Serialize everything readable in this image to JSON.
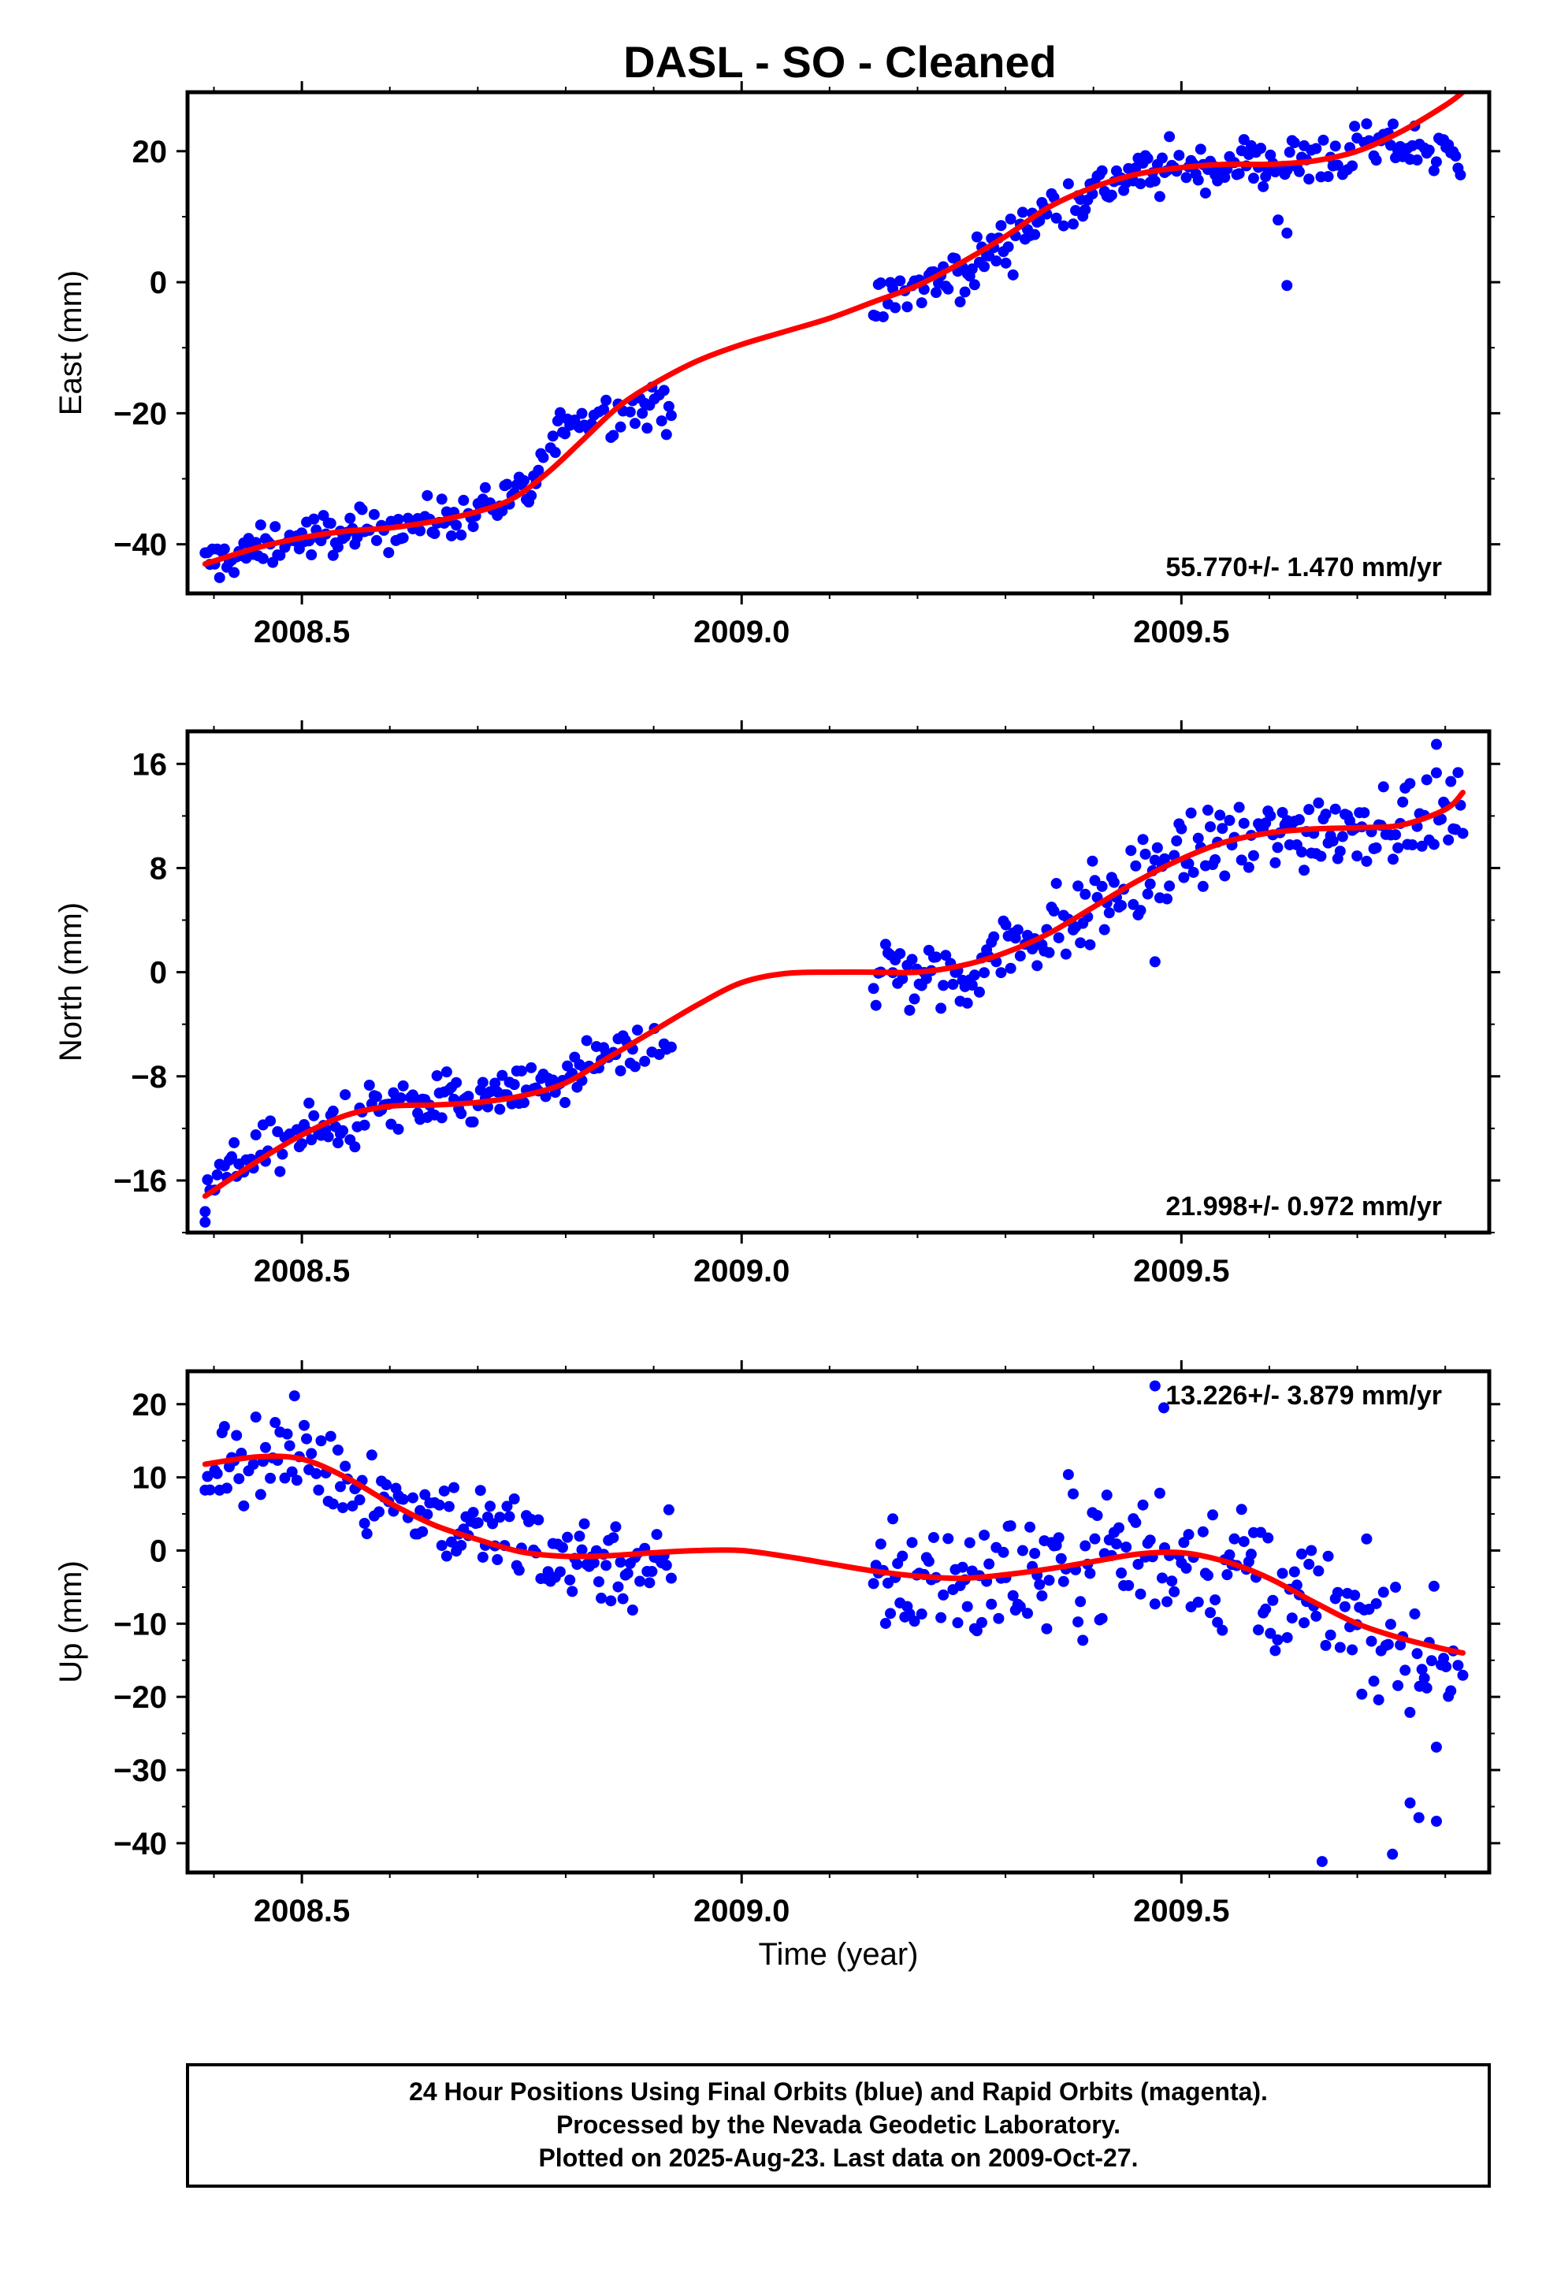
{
  "title": "DASL  - SO - Cleaned",
  "footer_lines": [
    "24 Hour Positions Using Final Orbits (blue) and Rapid Orbits (magenta).",
    "Processed by the Nevada Geodetic Laboratory.",
    "Plotted on 2025-Aug-23. Last data on 2009-Oct-27."
  ],
  "colors": {
    "points": "#0000ff",
    "fit": "#ff0000",
    "frame": "#000000"
  },
  "chart_data": [
    {
      "type": "scatter",
      "ylabel": "East (mm)",
      "xlabel": "",
      "rate": "55.770+/- 1.470 mm/yr",
      "xlim": [
        2008.37,
        2009.85
      ],
      "ylim": [
        -47.5,
        29
      ],
      "xticks": [
        "2008.5",
        "2009.0",
        "2009.5"
      ],
      "yticks": [
        20,
        0,
        -20,
        -40
      ],
      "fit": {
        "x": [
          2008.39,
          2008.45,
          2008.5,
          2008.55,
          2008.6,
          2008.65,
          2008.7,
          2008.74,
          2008.78,
          2008.82,
          2008.86,
          2008.9,
          2008.95,
          2009.0,
          2009.05,
          2009.1,
          2009.15,
          2009.2,
          2009.25,
          2009.3,
          2009.35,
          2009.4,
          2009.45,
          2009.5,
          2009.55,
          2009.6,
          2009.65,
          2009.7,
          2009.75,
          2009.8,
          2009.82
        ],
        "y": [
          -43,
          -40.5,
          -39,
          -38,
          -37.5,
          -36.5,
          -35,
          -33,
          -29,
          -24,
          -19,
          -15.5,
          -12,
          -9.5,
          -7.5,
          -5.5,
          -3,
          -0.5,
          3,
          7,
          11.5,
          14.5,
          16.5,
          17.5,
          18,
          18,
          18.5,
          20,
          23,
          27,
          29
        ]
      },
      "segments": [
        {
          "x": [
            2008.39,
            2008.92
          ],
          "curve": [
            [
              2008.39,
              -43
            ],
            [
              2008.5,
              -39
            ],
            [
              2008.6,
              -37.5
            ],
            [
              2008.7,
              -35
            ],
            [
              2008.76,
              -32
            ],
            [
              2008.8,
              -21
            ],
            [
              2008.92,
              -19
            ]
          ],
          "noise": 2.3
        },
        {
          "x": [
            2009.15,
            2009.82
          ],
          "curve": [
            [
              2009.15,
              -4
            ],
            [
              2009.25,
              1.5
            ],
            [
              2009.3,
              6
            ],
            [
              2009.36,
              12
            ],
            [
              2009.45,
              16.5
            ],
            [
              2009.55,
              18
            ],
            [
              2009.65,
              18.5
            ],
            [
              2009.75,
              21
            ],
            [
              2009.82,
              19
            ]
          ],
          "noise": 2.8
        }
      ],
      "outliers": [
        [
          2009.62,
          7.5
        ],
        [
          2009.62,
          -0.5
        ],
        [
          2009.61,
          9.5
        ]
      ]
    },
    {
      "type": "scatter",
      "ylabel": "North (mm)",
      "xlabel": "",
      "rate": "21.998+/- 0.972 mm/yr",
      "xlim": [
        2008.37,
        2009.85
      ],
      "ylim": [
        -20,
        18.5
      ],
      "xticks": [
        "2008.5",
        "2009.0",
        "2009.5"
      ],
      "yticks": [
        16,
        8,
        0,
        -8,
        -16
      ],
      "fit": {
        "x": [
          2008.39,
          2008.45,
          2008.5,
          2008.55,
          2008.6,
          2008.65,
          2008.7,
          2008.75,
          2008.8,
          2008.85,
          2008.9,
          2008.95,
          2009.0,
          2009.05,
          2009.1,
          2009.15,
          2009.2,
          2009.25,
          2009.3,
          2009.35,
          2009.4,
          2009.45,
          2009.5,
          2009.55,
          2009.6,
          2009.65,
          2009.7,
          2009.75,
          2009.8,
          2009.82
        ],
        "y": [
          -17.2,
          -14.5,
          -12.5,
          -11,
          -10.3,
          -10.2,
          -10,
          -9.5,
          -8.5,
          -6.5,
          -4.5,
          -2.5,
          -0.8,
          -0.1,
          0,
          0,
          0,
          0.5,
          1.5,
          3,
          5,
          7,
          8.7,
          10,
          10.7,
          11,
          11.1,
          11.3,
          12.5,
          13.8
        ]
      },
      "segments": [
        {
          "x": [
            2008.39,
            2008.92
          ],
          "curve": [
            [
              2008.39,
              -16
            ],
            [
              2008.5,
              -12.5
            ],
            [
              2008.6,
              -10.3
            ],
            [
              2008.7,
              -10
            ],
            [
              2008.8,
              -8.3
            ],
            [
              2008.92,
              -4.8
            ]
          ],
          "noise": 1.5
        },
        {
          "x": [
            2009.15,
            2009.82
          ],
          "curve": [
            [
              2009.15,
              0
            ],
            [
              2009.25,
              -0.3
            ],
            [
              2009.3,
              2
            ],
            [
              2009.4,
              5
            ],
            [
              2009.5,
              9
            ],
            [
              2009.6,
              10.5
            ],
            [
              2009.7,
              11.5
            ],
            [
              2009.82,
              12
            ]
          ],
          "noise": 2.2
        }
      ],
      "outliers": [
        [
          2008.39,
          -19.2
        ],
        [
          2009.47,
          0.8
        ],
        [
          2009.79,
          17.5
        ]
      ]
    },
    {
      "type": "scatter",
      "ylabel": "Up (mm)",
      "xlabel": "Time (year)",
      "rate": "13.226+/- 3.879 mm/yr",
      "xlim": [
        2008.37,
        2009.85
      ],
      "ylim": [
        -44,
        24.5
      ],
      "xticks": [
        "2008.5",
        "2009.0",
        "2009.5"
      ],
      "yticks": [
        20,
        10,
        0,
        -10,
        -20,
        -30,
        -40
      ],
      "fit": {
        "x": [
          2008.39,
          2008.45,
          2008.5,
          2008.55,
          2008.6,
          2008.65,
          2008.7,
          2008.75,
          2008.8,
          2008.85,
          2008.9,
          2008.95,
          2009.0,
          2009.05,
          2009.1,
          2009.15,
          2009.2,
          2009.25,
          2009.3,
          2009.35,
          2009.4,
          2009.45,
          2009.5,
          2009.55,
          2009.6,
          2009.65,
          2009.7,
          2009.75,
          2009.8,
          2009.82
        ],
        "y": [
          11.8,
          12.8,
          12.5,
          10,
          6.5,
          3.5,
          1.5,
          -0.2,
          -0.8,
          -0.7,
          -0.3,
          0,
          0,
          -0.8,
          -1.8,
          -2.8,
          -3.5,
          -3.8,
          -3.3,
          -2.5,
          -1.5,
          -0.5,
          -0.3,
          -1.5,
          -3.8,
          -7,
          -10,
          -12,
          -13.5,
          -14
        ]
      },
      "segments": [
        {
          "x": [
            2008.39,
            2008.92
          ],
          "curve": [
            [
              2008.39,
              12
            ],
            [
              2008.5,
              13
            ],
            [
              2008.6,
              7
            ],
            [
              2008.7,
              3
            ],
            [
              2008.8,
              -0.5
            ],
            [
              2008.92,
              -2.5
            ]
          ],
          "noise": 4.5
        },
        {
          "x": [
            2009.15,
            2009.82
          ],
          "curve": [
            [
              2009.15,
              -4
            ],
            [
              2009.3,
              -3.5
            ],
            [
              2009.45,
              1
            ],
            [
              2009.55,
              -2
            ],
            [
              2009.65,
              -8
            ],
            [
              2009.75,
              -14
            ],
            [
              2009.82,
              -16
            ]
          ],
          "noise": 6.5
        }
      ],
      "outliers": [
        [
          2009.47,
          22.5
        ],
        [
          2009.48,
          19.5
        ],
        [
          2009.66,
          -42.5
        ],
        [
          2009.74,
          -41.5
        ],
        [
          2009.77,
          -36.5
        ],
        [
          2009.79,
          -37
        ],
        [
          2009.76,
          -34.5
        ]
      ]
    }
  ]
}
